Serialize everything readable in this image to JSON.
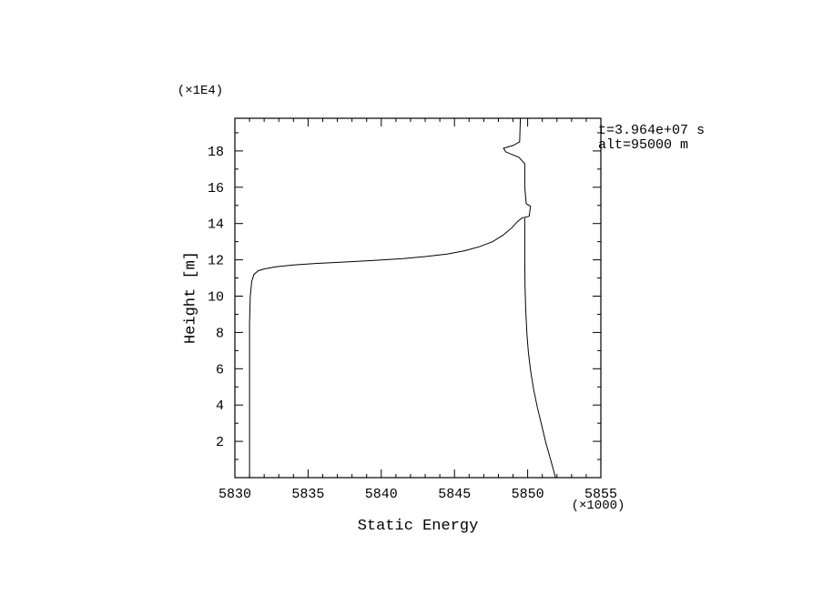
{
  "chart_data": {
    "type": "line",
    "title": "",
    "xlabel": "Static Energy",
    "ylabel": "Height [m]",
    "x_multiplier_label": "(×1000)",
    "y_multiplier_label": "(×1E4)",
    "xlim": [
      5830,
      5855
    ],
    "ylim": [
      0,
      19.8
    ],
    "x_major_ticks": [
      5830,
      5835,
      5840,
      5845,
      5850,
      5855
    ],
    "x_minor_step": 1,
    "y_major_ticks": [
      2,
      4,
      6,
      8,
      10,
      12,
      14,
      16,
      18
    ],
    "y_minor_step": 1,
    "grid": false,
    "legend": "none",
    "line_color": "#000000",
    "background_color": "#ffffff",
    "annotations": {
      "time": "t=3.964e+07 s",
      "alt": "alt=95000 m"
    },
    "series": [
      {
        "name": "static-energy-profile",
        "points": [
          [
            5831.0,
            0.0
          ],
          [
            5831.0,
            8.5
          ],
          [
            5831.05,
            10.0
          ],
          [
            5831.15,
            10.8
          ],
          [
            5831.3,
            11.2
          ],
          [
            5831.6,
            11.4
          ],
          [
            5832.0,
            11.5
          ],
          [
            5832.8,
            11.62
          ],
          [
            5834.0,
            11.72
          ],
          [
            5835.5,
            11.8
          ],
          [
            5837.5,
            11.88
          ],
          [
            5839.5,
            11.97
          ],
          [
            5841.5,
            12.07
          ],
          [
            5843.0,
            12.18
          ],
          [
            5844.5,
            12.32
          ],
          [
            5845.7,
            12.5
          ],
          [
            5846.7,
            12.72
          ],
          [
            5847.6,
            13.0
          ],
          [
            5848.3,
            13.35
          ],
          [
            5848.9,
            13.75
          ],
          [
            5849.3,
            14.1
          ],
          [
            5849.6,
            14.3
          ],
          [
            5850.1,
            14.4
          ],
          [
            5850.2,
            14.95
          ],
          [
            5849.9,
            15.1
          ],
          [
            5849.8,
            16.0
          ],
          [
            5849.8,
            17.3
          ],
          [
            5849.4,
            17.65
          ],
          [
            5848.5,
            17.95
          ],
          [
            5848.35,
            18.15
          ],
          [
            5849.0,
            18.3
          ],
          [
            5849.45,
            18.5
          ],
          [
            5849.5,
            19.8
          ]
        ]
      },
      {
        "name": "upper-branch-profile",
        "points": [
          [
            5851.9,
            0.0
          ],
          [
            5851.6,
            0.9
          ],
          [
            5851.25,
            1.9
          ],
          [
            5850.95,
            2.9
          ],
          [
            5850.65,
            3.9
          ],
          [
            5850.4,
            4.9
          ],
          [
            5850.2,
            5.9
          ],
          [
            5850.05,
            6.9
          ],
          [
            5849.95,
            7.9
          ],
          [
            5849.87,
            9.2
          ],
          [
            5849.82,
            10.5
          ],
          [
            5849.8,
            12.0
          ],
          [
            5849.8,
            14.3
          ]
        ]
      }
    ]
  }
}
